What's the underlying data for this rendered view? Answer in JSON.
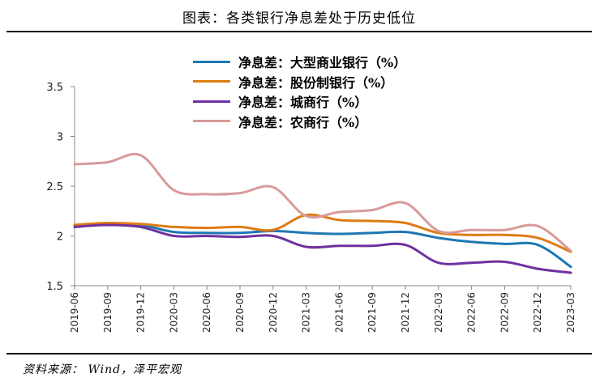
{
  "title": "图表：各类银行净息差处于历史低位",
  "source": {
    "label": "资料来源：",
    "value": "Wind，泽平宏观"
  },
  "chart_data": {
    "type": "line",
    "title": "图表：各类银行净息差处于历史低位",
    "xlabel": "",
    "ylabel": "",
    "ylim": [
      1.5,
      3.5
    ],
    "yticks": [
      "1.5",
      "2",
      "2.5",
      "3",
      "3.5"
    ],
    "grid": false,
    "legend_position": "top-center",
    "categories": [
      "2019-06",
      "2019-09",
      "2019-12",
      "2020-03",
      "2020-06",
      "2020-09",
      "2020-12",
      "2021-03",
      "2021-06",
      "2021-09",
      "2021-12",
      "2022-03",
      "2022-06",
      "2022-09",
      "2022-12",
      "2023-03"
    ],
    "series": [
      {
        "name": "净息差：大型商业银行（%）",
        "color": "#1f77b4",
        "values": [
          2.11,
          2.12,
          2.11,
          2.04,
          2.03,
          2.03,
          2.05,
          2.03,
          2.02,
          2.03,
          2.04,
          1.98,
          1.94,
          1.92,
          1.91,
          1.69
        ]
      },
      {
        "name": "净息差：股份制银行（%）",
        "color": "#e07b14",
        "values": [
          2.11,
          2.13,
          2.12,
          2.09,
          2.08,
          2.09,
          2.06,
          2.21,
          2.16,
          2.15,
          2.13,
          2.03,
          2.01,
          2.01,
          1.98,
          1.84
        ]
      },
      {
        "name": "净息差：城商行（%）",
        "color": "#7030a0",
        "values": [
          2.09,
          2.11,
          2.09,
          2.0,
          2.0,
          1.99,
          2.0,
          1.89,
          1.9,
          1.9,
          1.91,
          1.73,
          1.73,
          1.74,
          1.67,
          1.63
        ]
      },
      {
        "name": "净息差：农商行（%）",
        "color": "#d99a9a",
        "values": [
          2.72,
          2.74,
          2.81,
          2.46,
          2.42,
          2.43,
          2.49,
          2.2,
          2.24,
          2.26,
          2.33,
          2.05,
          2.06,
          2.06,
          2.1,
          1.85
        ]
      }
    ]
  }
}
